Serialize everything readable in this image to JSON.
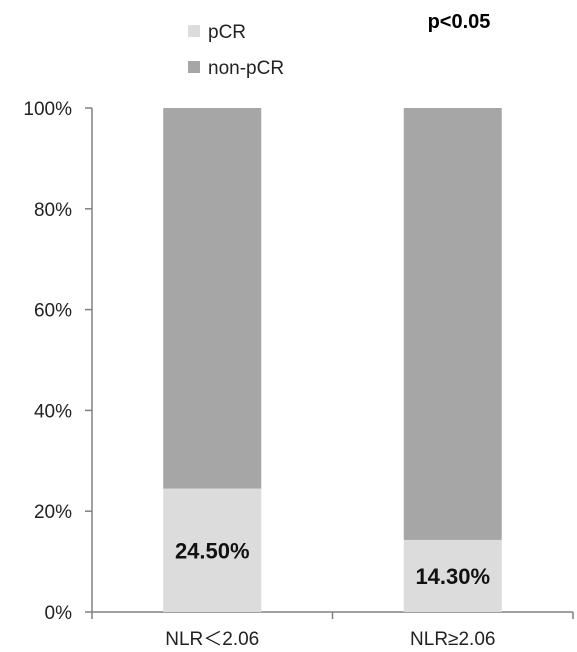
{
  "chart_data": {
    "type": "bar",
    "stacked": true,
    "categories": [
      "NLR＜2.06",
      "NLR≥2.06"
    ],
    "series": [
      {
        "name": "pCR",
        "values": [
          24.5,
          14.3
        ],
        "color": "#dcdcdc"
      },
      {
        "name": "non-pCR",
        "values": [
          75.5,
          85.7
        ],
        "color": "#a6a6a6"
      }
    ],
    "data_labels": [
      "24.50%",
      "14.30%"
    ],
    "ylim": [
      0,
      100
    ],
    "yticks": [
      "0%",
      "20%",
      "40%",
      "60%",
      "80%",
      "100%"
    ],
    "ytick_values": [
      0,
      20,
      40,
      60,
      80,
      100
    ],
    "legend_position": "top-left",
    "annotation": "p<0.05",
    "grid": false,
    "axis_color": "#808080"
  }
}
